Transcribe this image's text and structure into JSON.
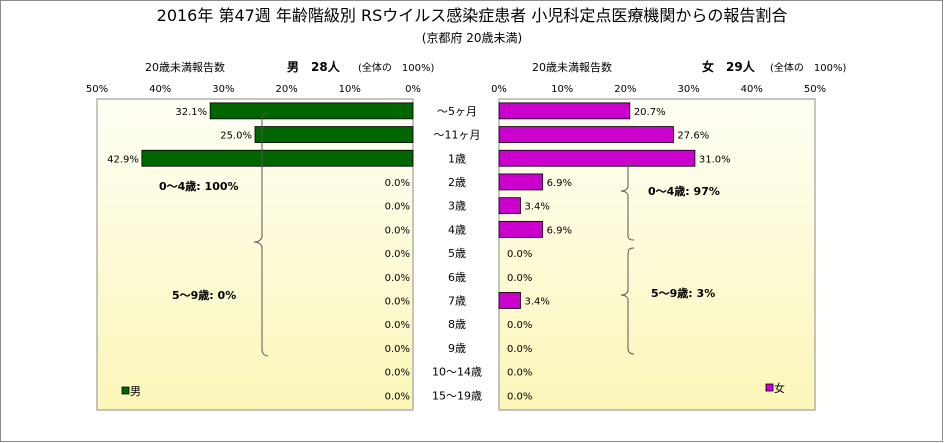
{
  "title": "2016年 第47週 年齢階級別 RSウイルス感染症患者 小児科定点医療機関からの報告割合",
  "subtitle": "(京都府 20歳未満)",
  "colors": {
    "male_bar": "#006600",
    "female_bar": "#cc00cc",
    "bar_edge": "#000000",
    "plot_top": "#fffff5",
    "plot_bottom": "#fbf6b8"
  },
  "chart_data": {
    "type": "bar",
    "orientation": "horizontal-butterfly",
    "categories": [
      "～5ヶ月",
      "～11ヶ月",
      "1歳",
      "2歳",
      "3歳",
      "4歳",
      "5歳",
      "6歳",
      "7歳",
      "8歳",
      "9歳",
      "10～14歳",
      "15～19歳"
    ],
    "male": {
      "header_count_label": "20歳未満報告数",
      "header_title": "男　28人",
      "header_note": "(全体の　100%)",
      "legend_label": "男",
      "values": [
        32.1,
        25.0,
        42.9,
        0.0,
        0.0,
        0.0,
        0.0,
        0.0,
        0.0,
        0.0,
        0.0,
        0.0,
        0.0
      ],
      "labels": [
        "32.1%",
        "25.0%",
        "42.9%",
        "0.0%",
        "0.0%",
        "0.0%",
        "0.0%",
        "0.0%",
        "0.0%",
        "0.0%",
        "0.0%",
        "0.0%",
        "0.0%"
      ],
      "xlim": [
        0,
        50
      ],
      "ticks": [
        "50%",
        "40%",
        "30%",
        "20%",
        "10%",
        "0%"
      ],
      "group_labels": [
        "0～4歳: 100%",
        "5～9歳: 0%"
      ]
    },
    "female": {
      "header_count_label": "20歳未満報告数",
      "header_title": "女　29人",
      "header_note": "(全体の　100%)",
      "legend_label": "女",
      "values": [
        20.7,
        27.6,
        31.0,
        6.9,
        3.4,
        6.9,
        0.0,
        0.0,
        3.4,
        0.0,
        0.0,
        0.0,
        0.0
      ],
      "labels": [
        "20.7%",
        "27.6%",
        "31.0%",
        "6.9%",
        "3.4%",
        "6.9%",
        "0.0%",
        "0.0%",
        "3.4%",
        "0.0%",
        "0.0%",
        "0.0%",
        "0.0%"
      ],
      "xlim": [
        0,
        50
      ],
      "ticks": [
        "0%",
        "10%",
        "20%",
        "30%",
        "40%",
        "50%"
      ],
      "group_labels": [
        "0～4歳: 97%",
        "5～9歳: 3%"
      ]
    },
    "grid": false,
    "legend": "bottom-corners"
  }
}
